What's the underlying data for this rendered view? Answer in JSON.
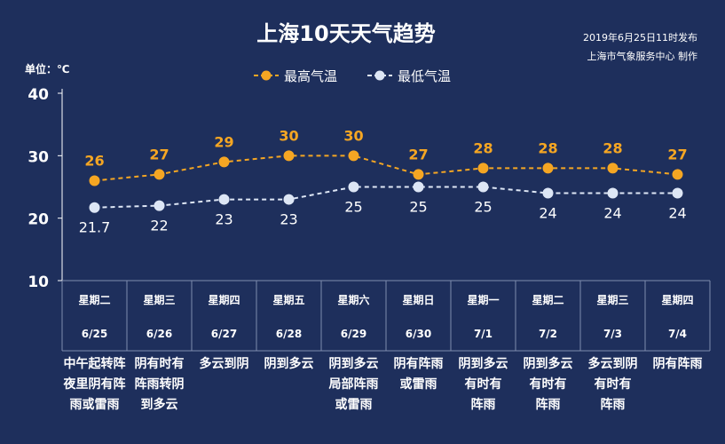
{
  "title": "上海10天天气趋势",
  "publish_info": {
    "line1": "2019年6月25日11时发布",
    "line2": "上海市气象服务中心  制作"
  },
  "unit_label": "单位：℃",
  "colors": {
    "background": "#1e2f5c",
    "high": "#f5a623",
    "low": "#dde6f5",
    "axis": "#ffffff",
    "grid": "#7f8cae"
  },
  "chart_data": {
    "type": "line",
    "ylim": [
      10,
      40
    ],
    "yticks": [
      10,
      20,
      30,
      40
    ],
    "grid": false,
    "legend": "top-center",
    "categories": [
      "6/25",
      "6/26",
      "6/27",
      "6/28",
      "6/29",
      "6/30",
      "7/1",
      "7/2",
      "7/3",
      "7/4"
    ],
    "weekdays": [
      "星期二",
      "星期三",
      "星期四",
      "星期五",
      "星期六",
      "星期日",
      "星期一",
      "星期二",
      "星期三",
      "星期四"
    ],
    "series": [
      {
        "name": "最高气温",
        "values": [
          26,
          27,
          29,
          30,
          30,
          27,
          28,
          28,
          28,
          27
        ],
        "labels": [
          "26",
          "27",
          "29",
          "30",
          "30",
          "27",
          "28",
          "28",
          "28",
          "27"
        ]
      },
      {
        "name": "最低气温",
        "values": [
          21.7,
          22,
          23,
          23,
          25,
          25,
          25,
          24,
          24,
          24
        ],
        "labels": [
          "21.7",
          "22",
          "23",
          "23",
          "25",
          "25",
          "25",
          "24",
          "24",
          "24"
        ]
      }
    ],
    "conditions": [
      [
        "中午起转阵",
        "夜里阴有阵",
        "雨或雷雨"
      ],
      [
        "阴有时有",
        "阵雨转阴",
        "到多云"
      ],
      [
        "多云到阴"
      ],
      [
        "阴到多云"
      ],
      [
        "阴到多云",
        "局部阵雨",
        "或雷雨"
      ],
      [
        "阴有阵雨",
        "或雷雨"
      ],
      [
        "阴到多云",
        "有时有",
        "阵雨"
      ],
      [
        "阴到多云",
        "有时有",
        "阵雨"
      ],
      [
        "多云到阴",
        "有时有",
        "阵雨"
      ],
      [
        "阴有阵雨"
      ]
    ]
  }
}
